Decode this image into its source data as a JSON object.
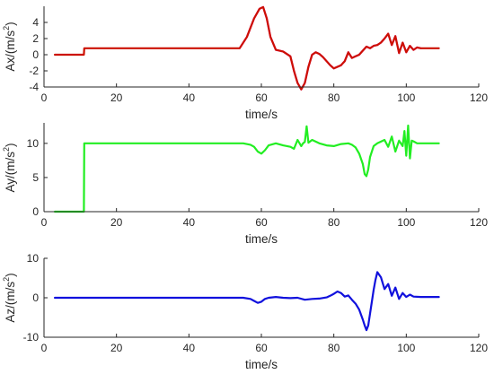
{
  "chart_data": [
    {
      "type": "line",
      "title": "",
      "xlabel": "time/s",
      "ylabel": "Ax/(m/s",
      "ylabel_superscript": "2",
      "ylabel_tail": ")",
      "xlim": [
        0,
        120
      ],
      "ylim": [
        -4,
        6
      ],
      "xticks": [
        0,
        20,
        40,
        60,
        80,
        100,
        120
      ],
      "yticks": [
        -4,
        -2,
        0,
        2,
        4
      ],
      "grid": false,
      "series": [
        {
          "color": "#cc1100",
          "highlight_color": "#ff00ff",
          "highlight_x_range": [
            54,
            104
          ],
          "x": [
            3,
            11,
            11.1,
            54,
            56,
            58,
            59.5,
            60.5,
            61.5,
            62.5,
            64,
            66,
            68,
            69,
            70,
            71,
            72,
            73,
            74,
            75,
            76,
            77,
            78,
            79,
            80,
            81,
            82,
            83,
            84,
            85,
            86,
            87,
            88,
            89,
            90,
            91,
            92,
            93,
            94,
            95,
            96,
            97,
            98,
            99,
            100,
            101,
            102,
            103,
            104,
            106,
            109
          ],
          "y": [
            0,
            0,
            0.8,
            0.8,
            2.2,
            4.5,
            5.7,
            5.9,
            4.5,
            2.2,
            0.6,
            0.4,
            -0.2,
            -2,
            -3.5,
            -4.3,
            -3.5,
            -1.5,
            0,
            0.3,
            0.1,
            -0.3,
            -0.8,
            -1.3,
            -1.7,
            -1.5,
            -1.3,
            -0.8,
            0.3,
            -0.4,
            -0.2,
            0,
            0.5,
            1.0,
            0.8,
            1.1,
            1.2,
            1.5,
            2.0,
            2.6,
            1.2,
            2.3,
            0.2,
            1.5,
            0.3,
            1.1,
            0.6,
            0.9,
            0.8,
            0.8,
            0.8
          ]
        }
      ]
    },
    {
      "type": "line",
      "title": "",
      "xlabel": "time/s",
      "ylabel": "Ay/(m/s",
      "ylabel_superscript": "2",
      "ylabel_tail": ")",
      "xlim": [
        0,
        120
      ],
      "ylim": [
        0,
        13
      ],
      "xticks": [
        0,
        20,
        40,
        60,
        80,
        100,
        120
      ],
      "yticks": [
        0,
        5,
        10
      ],
      "grid": false,
      "series": [
        {
          "color": "#22ee22",
          "x": [
            3,
            11,
            11.1,
            55,
            57,
            58,
            59,
            60,
            61,
            62,
            64,
            66,
            68,
            69,
            70,
            71,
            71.5,
            72,
            72.5,
            73,
            74,
            76,
            78,
            80,
            82,
            84,
            85,
            86,
            87,
            88,
            88.5,
            89,
            89.5,
            90,
            91,
            92,
            94,
            95,
            96,
            97,
            98,
            99,
            99.5,
            100,
            100.5,
            101,
            101.5,
            102,
            103,
            104,
            106,
            109
          ],
          "y": [
            0,
            0,
            10,
            10,
            9.8,
            9.5,
            8.8,
            8.5,
            9,
            9.7,
            10,
            9.7,
            9.5,
            9.2,
            10.5,
            9.6,
            10,
            10.2,
            12.5,
            10.1,
            10.5,
            10,
            9.7,
            9.6,
            9.9,
            10,
            9.8,
            9.4,
            8.5,
            7,
            5.5,
            5.2,
            6.2,
            8,
            9.6,
            10,
            10.5,
            9.5,
            11,
            8.8,
            10.4,
            9.6,
            11.8,
            8.2,
            12.6,
            7.8,
            10.4,
            10.3,
            10,
            10,
            10,
            10
          ]
        }
      ]
    },
    {
      "type": "line",
      "title": "",
      "xlabel": "time/s",
      "ylabel": "Az/(m/s",
      "ylabel_superscript": "2",
      "ylabel_tail": ")",
      "xlim": [
        0,
        120
      ],
      "ylim": [
        -10,
        10
      ],
      "xticks": [
        0,
        20,
        40,
        60,
        80,
        100,
        120
      ],
      "yticks": [
        -10,
        0,
        10
      ],
      "grid": false,
      "series": [
        {
          "color": "#1111dd",
          "x": [
            3,
            11,
            20,
            30,
            40,
            50,
            55,
            57,
            58,
            59,
            60,
            61,
            62,
            64,
            66,
            68,
            70,
            72,
            74,
            76,
            78,
            79,
            80,
            81,
            82,
            83,
            84,
            85,
            86,
            87,
            88,
            88.5,
            89,
            89.5,
            90,
            90.5,
            91,
            91.5,
            92,
            93,
            94,
            95,
            96,
            97,
            98,
            99,
            100,
            101,
            102,
            104,
            106,
            109
          ],
          "y": [
            0,
            0,
            0,
            0,
            0,
            0,
            0,
            -0.3,
            -0.8,
            -1.3,
            -1.0,
            -0.3,
            0,
            0.2,
            0,
            -0.1,
            0,
            -0.5,
            -0.3,
            -0.2,
            0.1,
            0.5,
            1.0,
            1.6,
            1.2,
            0.3,
            0.6,
            -0.5,
            -1.5,
            -3,
            -5.5,
            -7,
            -8.2,
            -7,
            -4,
            -1,
            2,
            4.5,
            6.5,
            5.2,
            2.2,
            3.5,
            0.5,
            2.6,
            -0.3,
            1.2,
            0.2,
            0.8,
            0.3,
            0.2,
            0.2,
            0.2
          ]
        }
      ]
    }
  ]
}
